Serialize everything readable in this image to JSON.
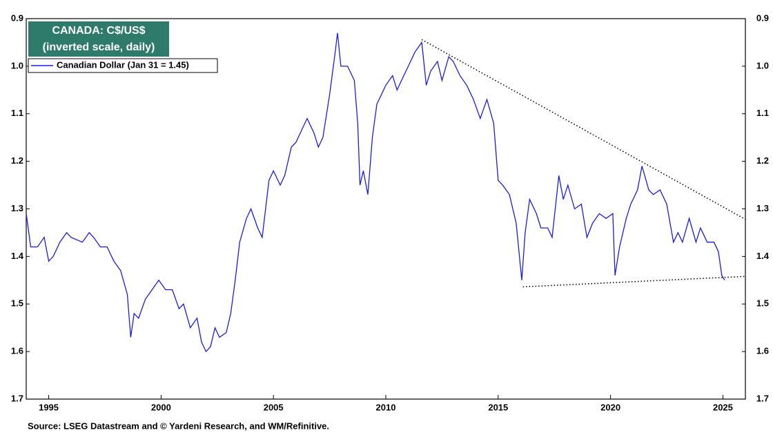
{
  "chart_data": {
    "type": "line",
    "title": "CANADA: C$/US$",
    "subtitle": "(inverted scale, daily)",
    "source": "Source: LSEG Datastream and © Yardeni Research, and WM/Refinitive.",
    "inverted": true,
    "xlim": [
      1994,
      2026
    ],
    "xticks": [
      1995,
      2000,
      2005,
      2010,
      2015,
      2020,
      2025
    ],
    "ylim": [
      0.9,
      1.7
    ],
    "yticks": [
      0.9,
      {
        "value": 1,
        "label": "1.0"
      },
      1.1,
      1.2,
      1.3,
      1.4,
      1.5,
      1.6,
      1.7
    ],
    "legend": "top-left",
    "series": [
      {
        "name": "Canadian Dollar (Jan 31 = 1.45)",
        "color": "#1a1ae6",
        "x": [
          1994.0,
          1994.2,
          1994.5,
          1994.8,
          1995.0,
          1995.2,
          1995.5,
          1995.8,
          1996.0,
          1996.5,
          1996.8,
          1997.0,
          1997.3,
          1997.6,
          1997.9,
          1998.2,
          1998.5,
          1998.65,
          1998.8,
          1999.0,
          1999.3,
          1999.6,
          1999.9,
          2000.2,
          2000.5,
          2000.8,
          2001.0,
          2001.3,
          2001.6,
          2001.8,
          2002.0,
          2002.2,
          2002.4,
          2002.6,
          2002.9,
          2003.1,
          2003.3,
          2003.5,
          2003.8,
          2004.0,
          2004.3,
          2004.5,
          2004.8,
          2005.0,
          2005.3,
          2005.5,
          2005.8,
          2006.0,
          2006.3,
          2006.5,
          2006.8,
          2007.0,
          2007.2,
          2007.5,
          2007.75,
          2007.85,
          2008.0,
          2008.3,
          2008.6,
          2008.75,
          2008.85,
          2009.0,
          2009.2,
          2009.4,
          2009.6,
          2009.8,
          2010.0,
          2010.3,
          2010.5,
          2010.8,
          2011.0,
          2011.3,
          2011.6,
          2011.8,
          2012.0,
          2012.3,
          2012.5,
          2012.8,
          2013.0,
          2013.3,
          2013.6,
          2013.9,
          2014.2,
          2014.5,
          2014.8,
          2015.0,
          2015.2,
          2015.5,
          2015.8,
          2016.05,
          2016.2,
          2016.4,
          2016.7,
          2016.9,
          2017.2,
          2017.4,
          2017.7,
          2017.9,
          2018.1,
          2018.4,
          2018.7,
          2018.95,
          2019.2,
          2019.5,
          2019.8,
          2020.1,
          2020.2,
          2020.4,
          2020.7,
          2020.9,
          2021.2,
          2021.4,
          2021.7,
          2021.9,
          2022.2,
          2022.5,
          2022.8,
          2023.0,
          2023.2,
          2023.5,
          2023.8,
          2024.0,
          2024.3,
          2024.6,
          2024.8,
          2024.95,
          2025.08
        ],
        "values": [
          1.31,
          1.38,
          1.38,
          1.36,
          1.41,
          1.4,
          1.37,
          1.35,
          1.36,
          1.37,
          1.35,
          1.36,
          1.38,
          1.38,
          1.41,
          1.43,
          1.48,
          1.57,
          1.52,
          1.53,
          1.49,
          1.47,
          1.45,
          1.47,
          1.47,
          1.51,
          1.5,
          1.55,
          1.53,
          1.58,
          1.6,
          1.59,
          1.55,
          1.57,
          1.56,
          1.52,
          1.45,
          1.37,
          1.32,
          1.3,
          1.34,
          1.36,
          1.24,
          1.22,
          1.25,
          1.23,
          1.17,
          1.16,
          1.13,
          1.11,
          1.14,
          1.17,
          1.15,
          1.06,
          0.97,
          0.93,
          1.0,
          1.0,
          1.03,
          1.12,
          1.25,
          1.22,
          1.27,
          1.15,
          1.08,
          1.06,
          1.04,
          1.02,
          1.05,
          1.02,
          1.0,
          0.97,
          0.95,
          1.04,
          1.01,
          0.99,
          1.03,
          0.98,
          0.99,
          1.02,
          1.04,
          1.07,
          1.11,
          1.07,
          1.12,
          1.24,
          1.25,
          1.27,
          1.33,
          1.45,
          1.35,
          1.28,
          1.31,
          1.34,
          1.34,
          1.36,
          1.23,
          1.28,
          1.25,
          1.3,
          1.29,
          1.36,
          1.33,
          1.31,
          1.32,
          1.31,
          1.44,
          1.38,
          1.32,
          1.29,
          1.26,
          1.21,
          1.26,
          1.27,
          1.26,
          1.29,
          1.37,
          1.35,
          1.37,
          1.32,
          1.37,
          1.34,
          1.37,
          1.37,
          1.39,
          1.44,
          1.45
        ]
      }
    ],
    "trend_lines": [
      {
        "x": [
          2011.6,
          2026
        ],
        "y": [
          0.944,
          1.322
        ]
      },
      {
        "x": [
          2016.1,
          2026
        ],
        "y": [
          1.464,
          1.442
        ]
      }
    ]
  }
}
